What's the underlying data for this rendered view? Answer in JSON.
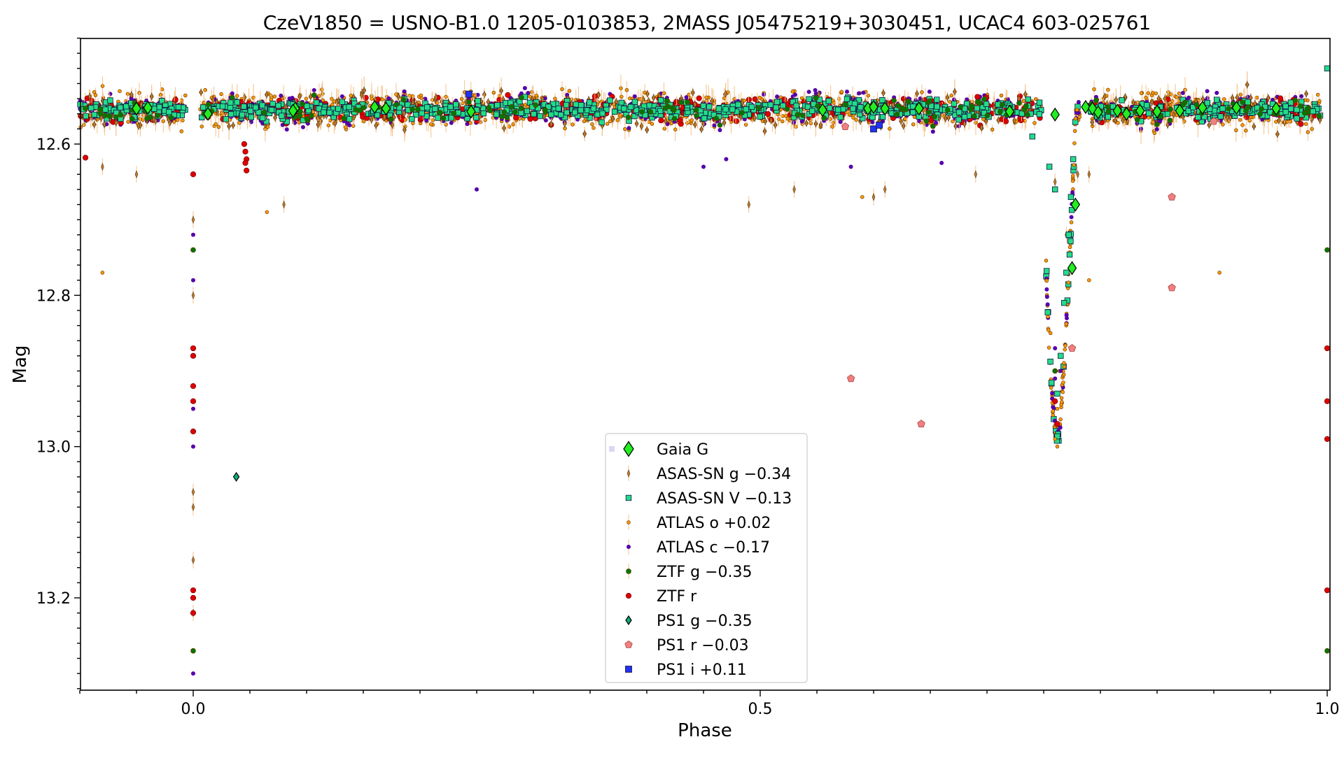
{
  "chart_data": {
    "type": "scatter",
    "title": "CzeV1850 = USNO-B1.0 1205-0103853, 2MASS J05475219+3030451, UCAC4 603-025761",
    "xlabel": "Phase",
    "ylabel": "Mag",
    "xlim": [
      -0.1,
      1.0
    ],
    "ylim": [
      13.32,
      12.46
    ],
    "y_inverted": true,
    "x_ticks": [
      "0.0",
      "0.5",
      "1.0"
    ],
    "y_ticks": [
      "12.6",
      "12.8",
      "13.0",
      "13.2"
    ],
    "legend_position": "lower-center",
    "baseline_mag": 12.555,
    "primary_eclipse": {
      "phase": 0.0,
      "depth_mag": 13.29
    },
    "secondary_eclipse": {
      "phase": 0.776,
      "depth_mag": 13.0
    },
    "series": [
      {
        "name": "Gaia G",
        "marker": "diamond",
        "color": "#22ee22",
        "points": [
          [
            -0.05,
            12.553
          ],
          [
            -0.04,
            12.552
          ],
          [
            0.013,
            12.56
          ],
          [
            0.09,
            12.553
          ],
          [
            0.088,
            12.556
          ],
          [
            0.16,
            12.551
          ],
          [
            0.17,
            12.553
          ],
          [
            0.245,
            12.557
          ],
          [
            0.555,
            12.555
          ],
          [
            0.595,
            12.553
          ],
          [
            0.6,
            12.551
          ],
          [
            0.61,
            12.553
          ],
          [
            0.64,
            12.553
          ],
          [
            0.72,
            12.557
          ],
          [
            0.85,
            12.557
          ],
          [
            0.775,
            12.764
          ],
          [
            0.778,
            12.68
          ],
          [
            0.787,
            12.551
          ],
          [
            0.793,
            12.553
          ],
          [
            0.798,
            12.558
          ],
          [
            0.815,
            12.556
          ],
          [
            0.835,
            12.556
          ],
          [
            0.87,
            12.556
          ],
          [
            0.89,
            12.552
          ],
          [
            0.92,
            12.552
          ],
          [
            0.955,
            12.553
          ],
          [
            0.76,
            12.561
          ],
          [
            0.823,
            12.56
          ]
        ]
      },
      {
        "name": "ASAS-SN g −0.34",
        "marker": "thin-diamond",
        "color": "#c07a30",
        "points": [
          [
            -0.08,
            12.63
          ],
          [
            -0.05,
            12.64
          ],
          [
            0.08,
            12.68
          ],
          [
            0.49,
            12.68
          ],
          [
            0.53,
            12.66
          ],
          [
            0.6,
            12.67
          ],
          [
            0.61,
            12.66
          ],
          [
            0.0,
            12.7
          ],
          [
            0.0,
            12.8
          ],
          [
            0.0,
            13.06
          ],
          [
            0.0,
            13.08
          ],
          [
            0.0,
            13.15
          ],
          [
            0.0,
            13.22
          ],
          [
            0.77,
            12.72
          ],
          [
            0.76,
            12.65
          ],
          [
            0.78,
            12.64
          ],
          [
            0.79,
            12.64
          ],
          [
            0.69,
            12.64
          ]
        ]
      },
      {
        "name": "ASAS-SN V −0.13",
        "marker": "square",
        "color": "#22dd88",
        "points": [
          [
            0.74,
            12.59
          ],
          [
            0.755,
            12.63
          ],
          [
            0.76,
            12.66
          ],
          [
            0.762,
            12.93
          ],
          [
            0.765,
            12.88
          ],
          [
            0.768,
            12.81
          ],
          [
            0.77,
            12.77
          ],
          [
            0.772,
            12.72
          ],
          [
            0.774,
            12.67
          ],
          [
            0.776,
            12.62
          ],
          [
            1.0,
            12.5
          ]
        ]
      },
      {
        "name": "ATLAS o +0.02",
        "marker": "circle-small",
        "color": "#ff9900",
        "points": [
          [
            -0.08,
            12.77
          ],
          [
            0.065,
            12.69
          ],
          [
            0.59,
            12.67
          ],
          [
            0.79,
            12.78
          ],
          [
            0.905,
            12.77
          ],
          [
            0.76,
            12.99
          ],
          [
            0.762,
            12.95
          ],
          [
            0.764,
            12.9
          ],
          [
            0.762,
            13.0
          ],
          [
            0.756,
            12.85
          ]
        ]
      },
      {
        "name": "ATLAS c −0.17",
        "marker": "point",
        "color": "#5500aa",
        "points": [
          [
            0.25,
            12.66
          ],
          [
            0.45,
            12.63
          ],
          [
            0.58,
            12.63
          ],
          [
            0.0,
            12.72
          ],
          [
            0.0,
            12.78
          ],
          [
            0.0,
            12.95
          ],
          [
            0.0,
            13.0
          ],
          [
            0.0,
            13.3
          ],
          [
            0.76,
            12.87
          ],
          [
            0.765,
            12.9
          ],
          [
            0.47,
            12.62
          ],
          [
            0.66,
            12.625
          ],
          [
            0.76,
            12.91
          ]
        ]
      },
      {
        "name": "ZTF g −0.35",
        "marker": "circle-small",
        "color": "#007700",
        "points": [
          [
            0.0,
            12.74
          ],
          [
            0.0,
            13.27
          ],
          [
            0.76,
            12.9
          ],
          [
            1.0,
            12.74
          ],
          [
            1.0,
            13.27
          ]
        ]
      },
      {
        "name": "ZTF r",
        "marker": "circle",
        "color": "#dd0000",
        "points": [
          [
            -0.095,
            12.618
          ],
          [
            0.045,
            12.6
          ],
          [
            0.046,
            12.61
          ],
          [
            0.047,
            12.62
          ],
          [
            0.046,
            12.625
          ],
          [
            0.047,
            12.635
          ],
          [
            0.0,
            12.64
          ],
          [
            0.0,
            12.87
          ],
          [
            0.0,
            12.88
          ],
          [
            0.0,
            12.92
          ],
          [
            0.0,
            12.94
          ],
          [
            0.0,
            12.98
          ],
          [
            0.0,
            13.19
          ],
          [
            0.0,
            13.2
          ],
          [
            0.0,
            13.22
          ],
          [
            0.76,
            12.94
          ],
          [
            0.762,
            12.97
          ],
          [
            1.0,
            12.87
          ],
          [
            1.0,
            12.94
          ],
          [
            1.0,
            12.99
          ],
          [
            1.0,
            13.19
          ]
        ]
      },
      {
        "name": "PS1 g −0.35",
        "marker": "diamond",
        "color": "#11aa77",
        "points": [
          [
            0.038,
            13.04
          ]
        ]
      },
      {
        "name": "PS1 r −0.03",
        "marker": "pentagon",
        "color": "#f08080",
        "points": [
          [
            0.575,
            12.577
          ],
          [
            0.58,
            12.91
          ],
          [
            0.642,
            12.97
          ],
          [
            0.863,
            12.67
          ],
          [
            0.863,
            12.79
          ],
          [
            0.9,
            12.57
          ],
          [
            0.775,
            12.87
          ]
        ]
      },
      {
        "name": "PS1 i +0.11",
        "marker": "square",
        "color": "#2233ee",
        "points": [
          [
            0.243,
            12.534
          ],
          [
            0.6,
            12.58
          ],
          [
            0.605,
            12.575
          ]
        ]
      }
    ]
  }
}
